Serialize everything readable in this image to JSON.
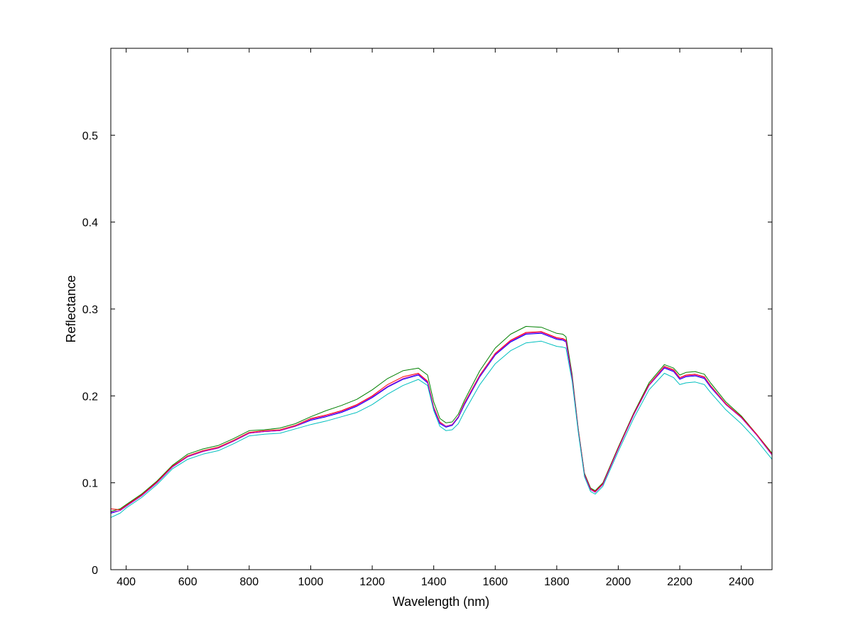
{
  "chart_data": {
    "type": "line",
    "title": "",
    "xlabel": "Wavelength (nm)",
    "ylabel": "Reflectance",
    "xlim": [
      350,
      2500
    ],
    "ylim": [
      0,
      0.6
    ],
    "xticks": [
      400,
      600,
      800,
      1000,
      1200,
      1400,
      1600,
      1800,
      2000,
      2200,
      2400
    ],
    "yticks": [
      0,
      0.1,
      0.2,
      0.3,
      0.4,
      0.5
    ],
    "xtick_labels": [
      "400",
      "600",
      "800",
      "1000",
      "1200",
      "1400",
      "1600",
      "1800",
      "2000",
      "2200",
      "2400"
    ],
    "ytick_labels": [
      "0",
      "0.1",
      "0.2",
      "0.3",
      "0.4",
      "0.5"
    ],
    "grid": false,
    "legend": "none",
    "x": [
      350,
      380,
      400,
      450,
      500,
      550,
      600,
      650,
      700,
      750,
      800,
      850,
      900,
      950,
      1000,
      1050,
      1100,
      1150,
      1200,
      1250,
      1300,
      1350,
      1380,
      1400,
      1420,
      1440,
      1460,
      1480,
      1500,
      1550,
      1600,
      1650,
      1700,
      1750,
      1800,
      1820,
      1830,
      1850,
      1870,
      1890,
      1910,
      1925,
      1950,
      2000,
      2050,
      2100,
      2150,
      2180,
      2200,
      2220,
      2250,
      2280,
      2300,
      2350,
      2400,
      2450,
      2500
    ],
    "series": [
      {
        "color": "#0000ff",
        "values": [
          0.065,
          0.068,
          0.073,
          0.085,
          0.1,
          0.118,
          0.13,
          0.136,
          0.14,
          0.148,
          0.157,
          0.159,
          0.16,
          0.165,
          0.172,
          0.176,
          0.181,
          0.188,
          0.198,
          0.21,
          0.219,
          0.224,
          0.215,
          0.185,
          0.168,
          0.164,
          0.166,
          0.175,
          0.19,
          0.222,
          0.247,
          0.262,
          0.271,
          0.272,
          0.265,
          0.264,
          0.262,
          0.22,
          0.16,
          0.11,
          0.093,
          0.09,
          0.099,
          0.14,
          0.178,
          0.212,
          0.232,
          0.228,
          0.219,
          0.222,
          0.223,
          0.22,
          0.21,
          0.19,
          0.175,
          0.155,
          0.132
        ]
      },
      {
        "color": "#008000",
        "values": [
          0.067,
          0.07,
          0.075,
          0.087,
          0.102,
          0.12,
          0.133,
          0.139,
          0.143,
          0.151,
          0.16,
          0.161,
          0.163,
          0.168,
          0.176,
          0.183,
          0.189,
          0.196,
          0.207,
          0.22,
          0.229,
          0.232,
          0.224,
          0.193,
          0.174,
          0.169,
          0.17,
          0.179,
          0.195,
          0.229,
          0.255,
          0.271,
          0.28,
          0.279,
          0.272,
          0.271,
          0.268,
          0.225,
          0.162,
          0.111,
          0.094,
          0.091,
          0.1,
          0.141,
          0.18,
          0.215,
          0.236,
          0.232,
          0.224,
          0.227,
          0.228,
          0.225,
          0.215,
          0.193,
          0.177,
          0.156,
          0.134
        ]
      },
      {
        "color": "#ff0000",
        "values": [
          0.07,
          0.069,
          0.074,
          0.086,
          0.101,
          0.119,
          0.131,
          0.137,
          0.141,
          0.149,
          0.158,
          0.16,
          0.161,
          0.166,
          0.174,
          0.178,
          0.183,
          0.19,
          0.2,
          0.213,
          0.222,
          0.226,
          0.217,
          0.187,
          0.17,
          0.165,
          0.167,
          0.176,
          0.192,
          0.224,
          0.249,
          0.264,
          0.273,
          0.274,
          0.267,
          0.266,
          0.264,
          0.222,
          0.161,
          0.11,
          0.093,
          0.09,
          0.099,
          0.14,
          0.179,
          0.213,
          0.234,
          0.23,
          0.221,
          0.224,
          0.225,
          0.222,
          0.212,
          0.191,
          0.176,
          0.156,
          0.133
        ]
      },
      {
        "color": "#bf00bf",
        "values": [
          0.066,
          0.068,
          0.073,
          0.085,
          0.1,
          0.118,
          0.13,
          0.136,
          0.14,
          0.148,
          0.157,
          0.159,
          0.16,
          0.165,
          0.173,
          0.177,
          0.182,
          0.189,
          0.199,
          0.211,
          0.22,
          0.225,
          0.216,
          0.186,
          0.169,
          0.165,
          0.167,
          0.176,
          0.191,
          0.223,
          0.248,
          0.263,
          0.272,
          0.273,
          0.266,
          0.265,
          0.263,
          0.221,
          0.16,
          0.109,
          0.092,
          0.089,
          0.098,
          0.139,
          0.178,
          0.212,
          0.233,
          0.229,
          0.22,
          0.223,
          0.224,
          0.221,
          0.211,
          0.19,
          0.175,
          0.155,
          0.132
        ]
      },
      {
        "color": "#00bfbf",
        "values": [
          0.06,
          0.065,
          0.071,
          0.083,
          0.098,
          0.116,
          0.127,
          0.133,
          0.137,
          0.145,
          0.154,
          0.156,
          0.157,
          0.162,
          0.167,
          0.171,
          0.176,
          0.181,
          0.19,
          0.202,
          0.212,
          0.219,
          0.212,
          0.183,
          0.165,
          0.16,
          0.161,
          0.168,
          0.182,
          0.213,
          0.237,
          0.252,
          0.261,
          0.263,
          0.257,
          0.256,
          0.255,
          0.217,
          0.158,
          0.107,
          0.09,
          0.087,
          0.096,
          0.136,
          0.174,
          0.207,
          0.226,
          0.221,
          0.213,
          0.215,
          0.216,
          0.213,
          0.204,
          0.184,
          0.168,
          0.149,
          0.127
        ]
      }
    ]
  }
}
